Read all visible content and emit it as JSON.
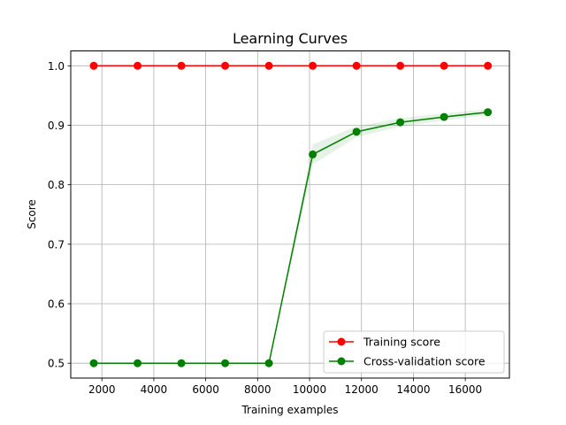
{
  "chart_data": {
    "type": "line",
    "title": "Learning Curves",
    "xlabel": "Training examples",
    "ylabel": "Score",
    "xlim": [
      800,
      17700
    ],
    "ylim": [
      0.475,
      1.025
    ],
    "xticks": [
      2000,
      4000,
      6000,
      8000,
      10000,
      12000,
      14000,
      16000
    ],
    "yticks": [
      0.5,
      0.6,
      0.7,
      0.8,
      0.9,
      1.0
    ],
    "grid": true,
    "legend_position": "lower-right",
    "x": [
      1687,
      3374,
      5061,
      6748,
      8435,
      10122,
      11809,
      13496,
      15183,
      16870
    ],
    "series": [
      {
        "name": "Training score",
        "color": "#ff0000",
        "values": [
          1.0,
          1.0,
          1.0,
          1.0,
          1.0,
          1.0,
          1.0,
          1.0,
          1.0,
          1.0
        ],
        "std_band": [
          0,
          0,
          0,
          0,
          0,
          0,
          0,
          0,
          0,
          0
        ]
      },
      {
        "name": "Cross-validation score",
        "color": "#008000",
        "values": [
          0.5,
          0.5,
          0.5,
          0.5,
          0.5,
          0.851,
          0.889,
          0.905,
          0.914,
          0.922
        ],
        "std_band": [
          0,
          0,
          0,
          0,
          0,
          0.017,
          0.009,
          0.007,
          0.006,
          0.005
        ]
      }
    ]
  }
}
